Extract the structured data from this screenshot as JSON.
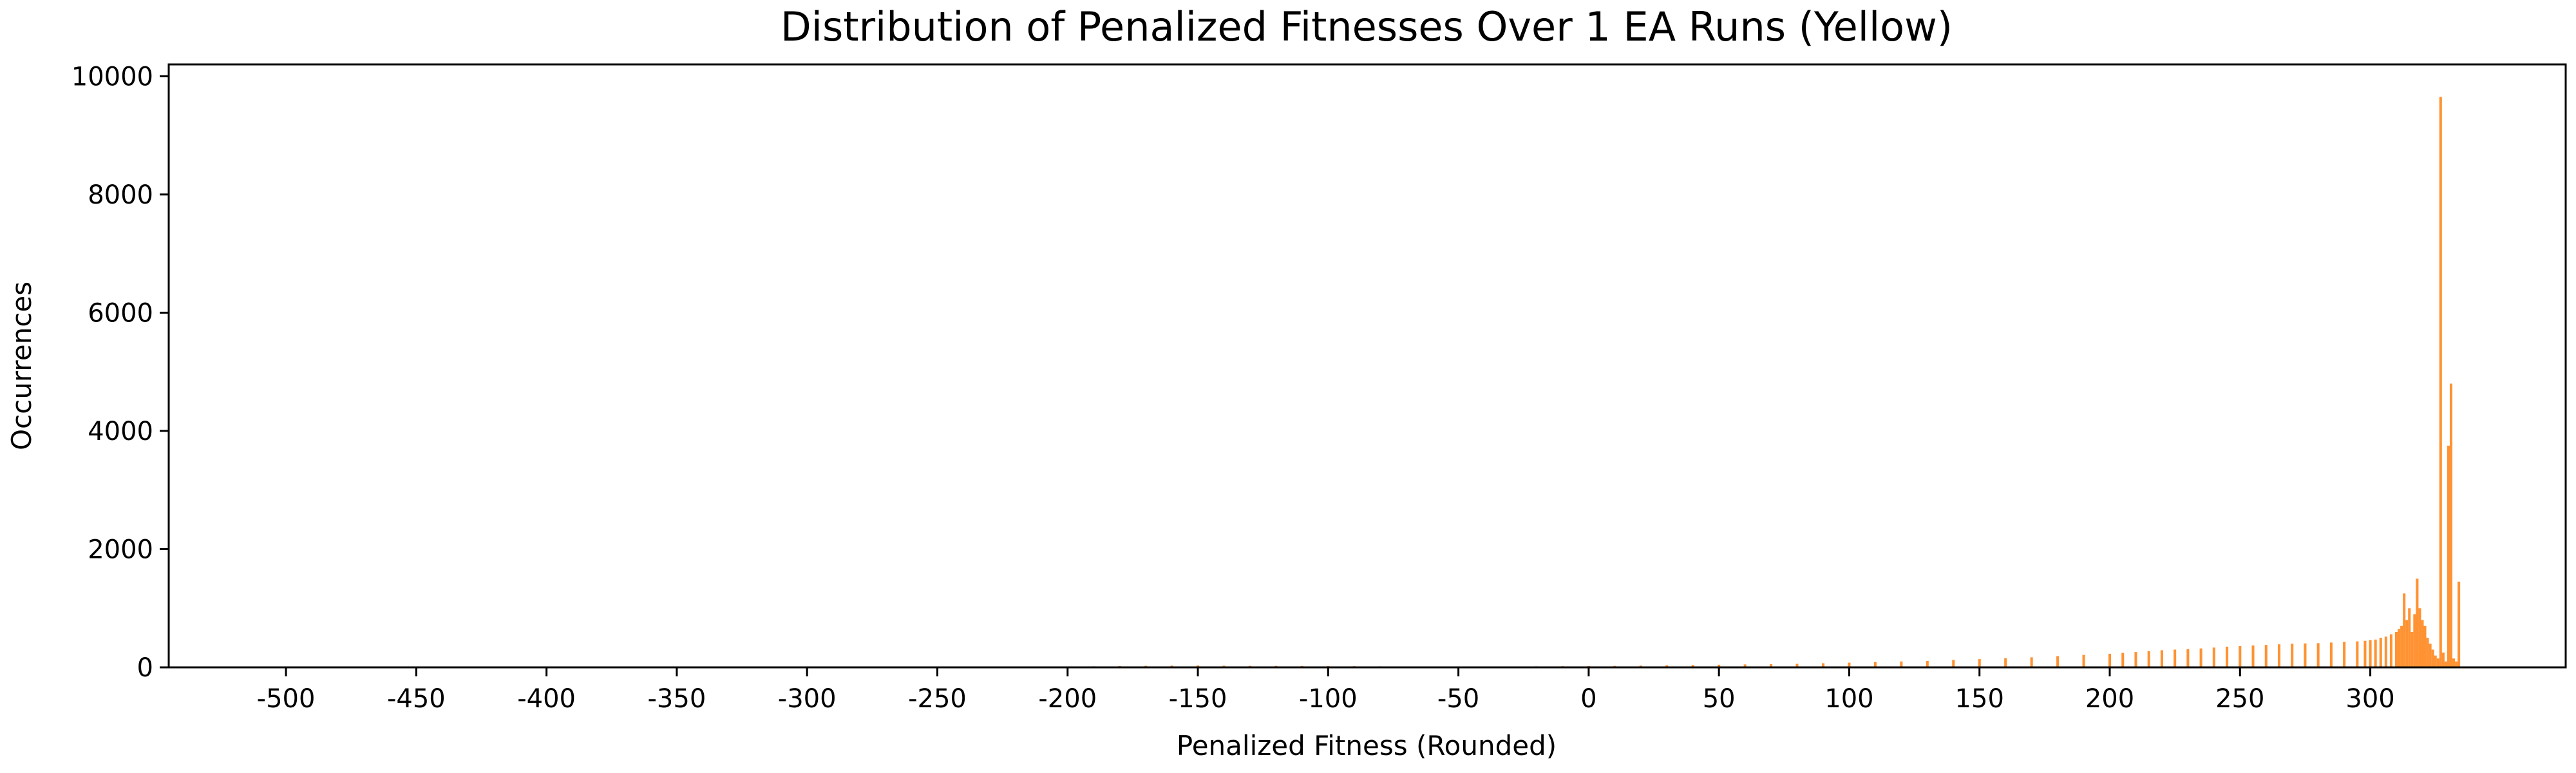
{
  "chart_data": {
    "type": "bar",
    "title": "Distribution of Penalized Fitnesses Over 1 EA Runs (Yellow)",
    "xlabel": "Penalized Fitness (Rounded)",
    "ylabel": "Occurrences",
    "xlim": [
      -545,
      375
    ],
    "ylim": [
      0,
      10200
    ],
    "x_ticks": [
      -500,
      -450,
      -400,
      -350,
      -300,
      -250,
      -200,
      -150,
      -100,
      -50,
      0,
      50,
      100,
      150,
      200,
      250,
      300
    ],
    "y_ticks": [
      0,
      2000,
      4000,
      6000,
      8000,
      10000
    ],
    "bar_color": "#ff7f0e",
    "bar_width": 1,
    "grid": false,
    "legend": "none",
    "series": [
      {
        "x": [
          -230,
          -220,
          -210,
          -200,
          -190,
          -180,
          -170,
          -160,
          -150,
          -140,
          -130,
          -120,
          -110,
          -100,
          -90,
          -80,
          -70,
          -60,
          -50,
          -40,
          -30,
          -20,
          -10,
          0,
          10,
          20,
          30,
          40,
          50,
          60,
          70,
          80,
          90,
          100,
          110,
          120,
          130,
          140,
          150,
          160,
          170,
          180,
          190,
          200,
          205,
          210,
          215,
          220,
          225,
          230,
          235,
          240,
          245,
          250,
          255,
          260,
          265,
          270,
          275,
          280,
          285,
          290,
          295,
          298,
          300,
          302,
          304,
          306,
          308,
          310,
          311,
          312,
          313,
          314,
          315,
          316,
          317,
          318,
          319,
          320,
          321,
          322,
          323,
          324,
          325,
          326,
          327,
          328,
          329,
          330,
          331,
          332,
          333,
          334
        ],
        "values": [
          8,
          10,
          12,
          15,
          18,
          22,
          26,
          30,
          32,
          28,
          26,
          25,
          24,
          22,
          20,
          18,
          16,
          15,
          14,
          15,
          16,
          18,
          20,
          22,
          25,
          30,
          35,
          40,
          45,
          50,
          55,
          60,
          70,
          80,
          90,
          100,
          110,
          125,
          140,
          155,
          170,
          190,
          210,
          230,
          245,
          260,
          275,
          290,
          300,
          310,
          320,
          335,
          350,
          360,
          370,
          380,
          390,
          400,
          405,
          410,
          420,
          430,
          440,
          450,
          460,
          470,
          500,
          520,
          560,
          600,
          650,
          700,
          1250,
          800,
          1000,
          600,
          900,
          1500,
          1000,
          800,
          700,
          500,
          400,
          300,
          200,
          150,
          9650,
          250,
          100,
          3750,
          4800,
          150,
          100,
          1450
        ]
      }
    ]
  }
}
